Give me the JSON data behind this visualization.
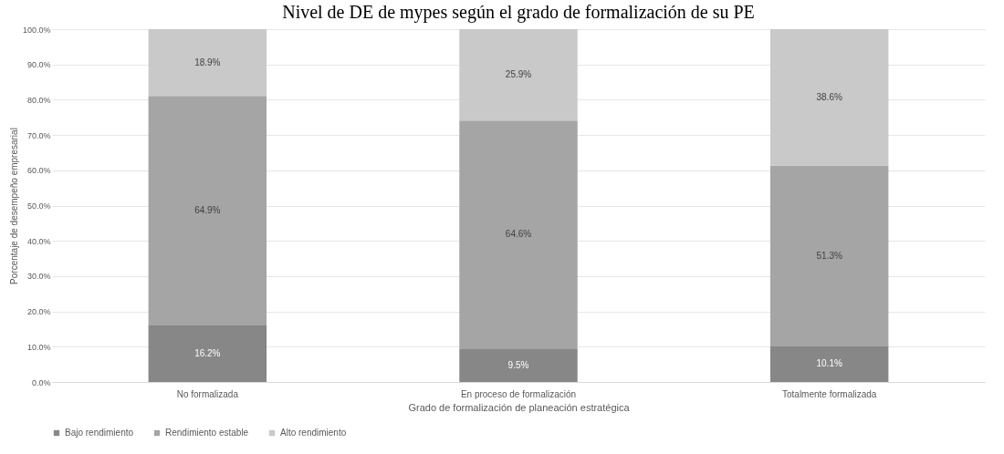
{
  "chart_data": {
    "type": "bar",
    "stacked": true,
    "title": "Nivel de DE de mypes según el grado de formalización de su PE",
    "xlabel": "Grado de formalización de planeación estratégica",
    "ylabel": "Porcentaje de desempeño empresarial",
    "categories": [
      "No formalizada",
      "En proceso de formalización",
      "Totalmente formalizada"
    ],
    "series": [
      {
        "name": "Bajo rendimiento",
        "color": "#878787",
        "values": [
          16.2,
          9.5,
          10.1
        ],
        "value_labels": [
          "16.2%",
          "9.5%",
          "10.1%"
        ]
      },
      {
        "name": "Rendimiento estable",
        "color": "#a5a5a5",
        "values": [
          64.9,
          64.6,
          51.3
        ],
        "value_labels": [
          "64.9%",
          "64.6%",
          "51.3%"
        ]
      },
      {
        "name": "Alto rendimiento",
        "color": "#c9c9c9",
        "values": [
          18.9,
          25.9,
          38.6
        ],
        "value_labels": [
          "18.9%",
          "25.9%",
          "38.6%"
        ]
      }
    ],
    "ylim": [
      0,
      100
    ],
    "yticks": [
      {
        "value": 0,
        "label": "0.0%"
      },
      {
        "value": 10,
        "label": "10.0%"
      },
      {
        "value": 20,
        "label": "20.0%"
      },
      {
        "value": 30,
        "label": "30.0%"
      },
      {
        "value": 40,
        "label": "40.0%"
      },
      {
        "value": 50,
        "label": "50.0%"
      },
      {
        "value": 60,
        "label": "60.0%"
      },
      {
        "value": 70,
        "label": "70.0%"
      },
      {
        "value": 80,
        "label": "80.0%"
      },
      {
        "value": 90,
        "label": "90.0%"
      },
      {
        "value": 100,
        "label": "100.0%"
      }
    ],
    "grid": "y",
    "legend": "bottom"
  }
}
